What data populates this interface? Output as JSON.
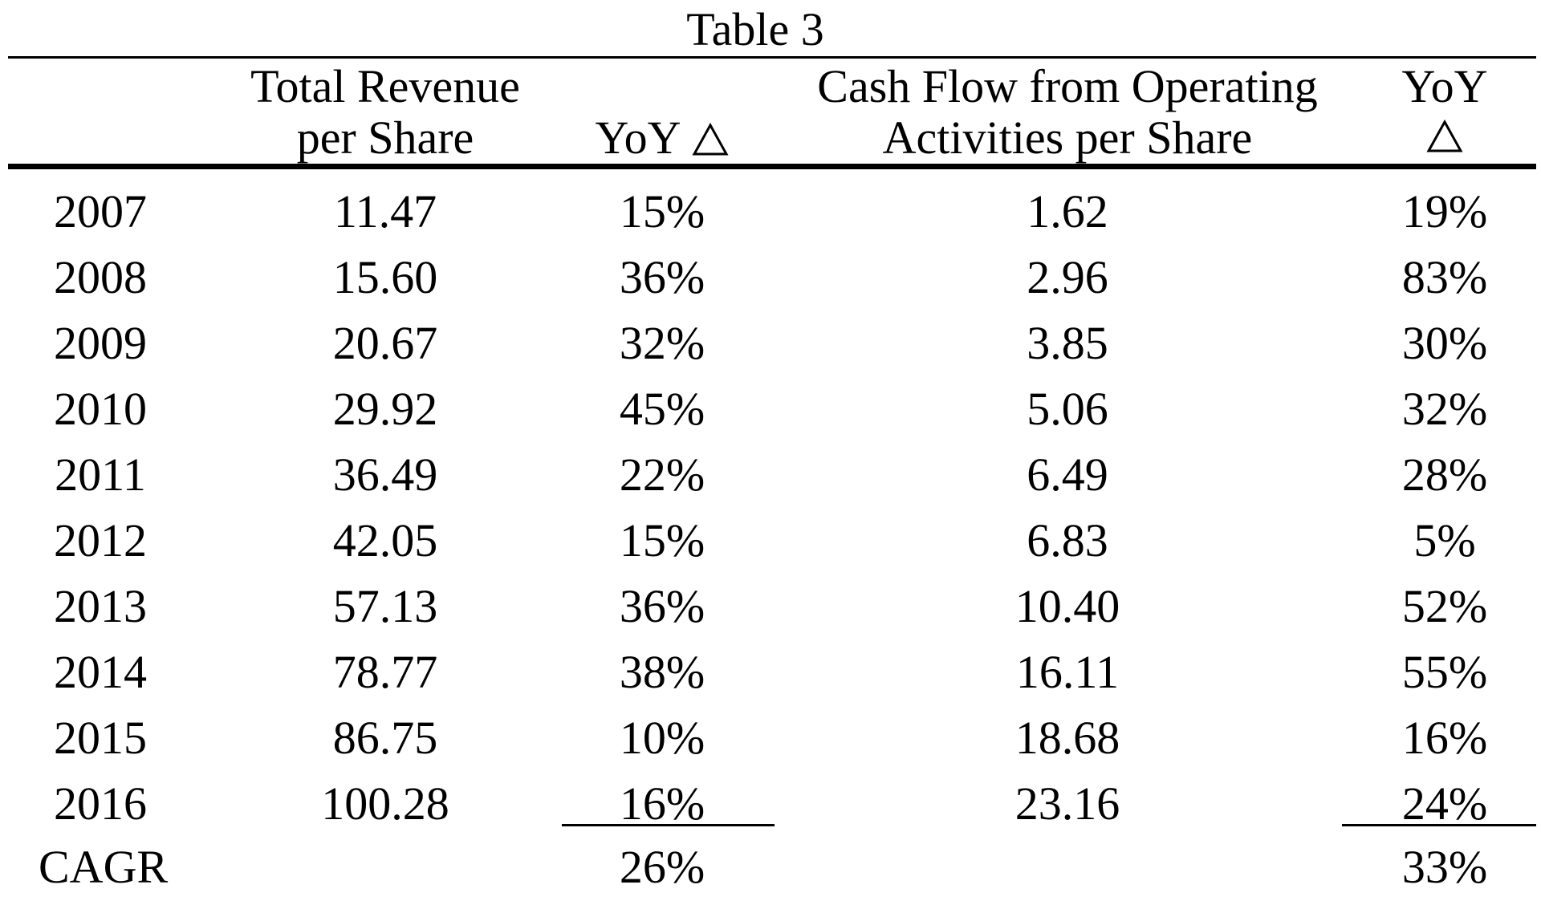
{
  "table": {
    "caption": "Table 3",
    "headers": {
      "revenue_line1": "Total Revenue",
      "revenue_line2": "per Share",
      "yoy1": "YoY",
      "cashflow_line1": "Cash Flow from Operating",
      "cashflow_line2": "Activities per Share",
      "yoy2": "YoY"
    },
    "rows": [
      {
        "year": "2007",
        "revenue": "11.47",
        "yoy_revenue": "15%",
        "cash_flow": "1.62",
        "yoy_cash_flow": "19%"
      },
      {
        "year": "2008",
        "revenue": "15.60",
        "yoy_revenue": "36%",
        "cash_flow": "2.96",
        "yoy_cash_flow": "83%"
      },
      {
        "year": "2009",
        "revenue": "20.67",
        "yoy_revenue": "32%",
        "cash_flow": "3.85",
        "yoy_cash_flow": "30%"
      },
      {
        "year": "2010",
        "revenue": "29.92",
        "yoy_revenue": "45%",
        "cash_flow": "5.06",
        "yoy_cash_flow": "32%"
      },
      {
        "year": "2011",
        "revenue": "36.49",
        "yoy_revenue": "22%",
        "cash_flow": "6.49",
        "yoy_cash_flow": "28%"
      },
      {
        "year": "2012",
        "revenue": "42.05",
        "yoy_revenue": "15%",
        "cash_flow": "6.83",
        "yoy_cash_flow": "5%"
      },
      {
        "year": "2013",
        "revenue": "57.13",
        "yoy_revenue": "36%",
        "cash_flow": "10.40",
        "yoy_cash_flow": "52%"
      },
      {
        "year": "2014",
        "revenue": "78.77",
        "yoy_revenue": "38%",
        "cash_flow": "16.11",
        "yoy_cash_flow": "55%"
      },
      {
        "year": "2015",
        "revenue": "86.75",
        "yoy_revenue": "10%",
        "cash_flow": "18.68",
        "yoy_cash_flow": "16%"
      },
      {
        "year": "2016",
        "revenue": "100.28",
        "yoy_revenue": "16%",
        "cash_flow": "23.16",
        "yoy_cash_flow": "24%"
      }
    ],
    "cagr": {
      "label": "CAGR",
      "yoy_revenue": "26%",
      "yoy_cash_flow": "33%"
    }
  }
}
